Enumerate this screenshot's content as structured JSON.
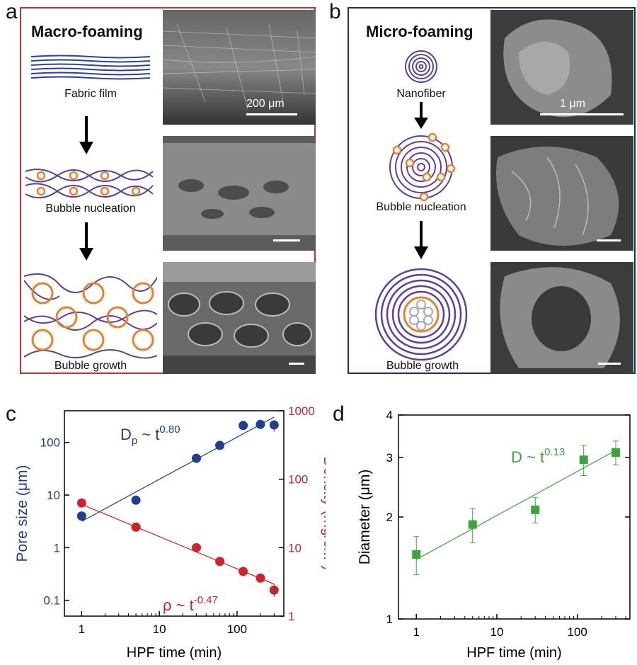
{
  "panel_labels": {
    "a": "a",
    "b": "b",
    "c": "c",
    "d": "d"
  },
  "panel_a": {
    "title": "Macro-foaming",
    "steps": [
      "Fabric film",
      "Bubble nucleation",
      "Bubble growth"
    ],
    "scale_label": "200 μm",
    "border_color": "#c9302c"
  },
  "panel_b": {
    "title": "Micro-foaming",
    "steps": [
      "Nanofiber",
      "Bubble nucleation",
      "Bubble growth"
    ],
    "scale_label": "1 μm",
    "border_color": "#1f2d6b"
  },
  "colors": {
    "fiber": "#5b3fa8",
    "bubble": "#e8822a",
    "blue_series": "#1e3f8f",
    "red_series": "#d42027",
    "green_series": "#3aa53a"
  },
  "chart_data": [
    {
      "type": "scatter",
      "panel": "c",
      "xlabel": "HPF time (min)",
      "x_scale": "log",
      "xlim": [
        0.6,
        400
      ],
      "x_ticks": [
        "1",
        "10",
        "100"
      ],
      "series": [
        {
          "name": "D_p",
          "axis": "left",
          "ylabel": "Pore size (μm)",
          "y_scale": "log",
          "ylim": [
            0.05,
            400
          ],
          "y_ticks": [
            "0.1",
            "1",
            "10",
            "100"
          ],
          "x": [
            1,
            5,
            30,
            60,
            120,
            200,
            300
          ],
          "y": [
            4,
            8,
            50,
            88,
            210,
            220,
            215
          ],
          "fit_label": "D",
          "fit_sub": "p",
          "fit_rel": " ~ t",
          "fit_exp": "0.80",
          "fit_exponent": 0.8
        },
        {
          "name": "ρ",
          "axis": "right",
          "ylabel": "Density (mg/cm",
          "ylabel_sup": "3",
          "ylabel_end": ")",
          "y_scale": "log",
          "ylim": [
            1,
            1000
          ],
          "y_ticks": [
            "1",
            "10",
            "100",
            "1000"
          ],
          "x": [
            1,
            5,
            30,
            60,
            120,
            200,
            300
          ],
          "y": [
            45,
            20,
            10,
            6.3,
            4.5,
            3.6,
            2.4
          ],
          "fit_label": "ρ ~ t",
          "fit_exp": "-0.47",
          "fit_exponent": -0.47
        }
      ]
    },
    {
      "type": "scatter",
      "panel": "d",
      "xlabel": "HPF time (min)",
      "ylabel": "Diameter (μm)",
      "x_scale": "log",
      "y_scale": "log",
      "xlim": [
        0.6,
        450
      ],
      "ylim": [
        1,
        4
      ],
      "x_ticks": [
        "1",
        "10",
        "100"
      ],
      "y_ticks": [
        "1",
        "2",
        "3",
        "4"
      ],
      "series": [
        {
          "name": "D",
          "x": [
            1,
            5,
            30,
            120,
            300
          ],
          "y": [
            1.55,
            1.9,
            2.1,
            2.95,
            3.1
          ],
          "err": [
            0.2,
            0.22,
            0.18,
            0.3,
            0.25
          ],
          "fit_label": "D ~ t",
          "fit_exp": "0.13",
          "fit_exponent": 0.13
        }
      ]
    }
  ]
}
